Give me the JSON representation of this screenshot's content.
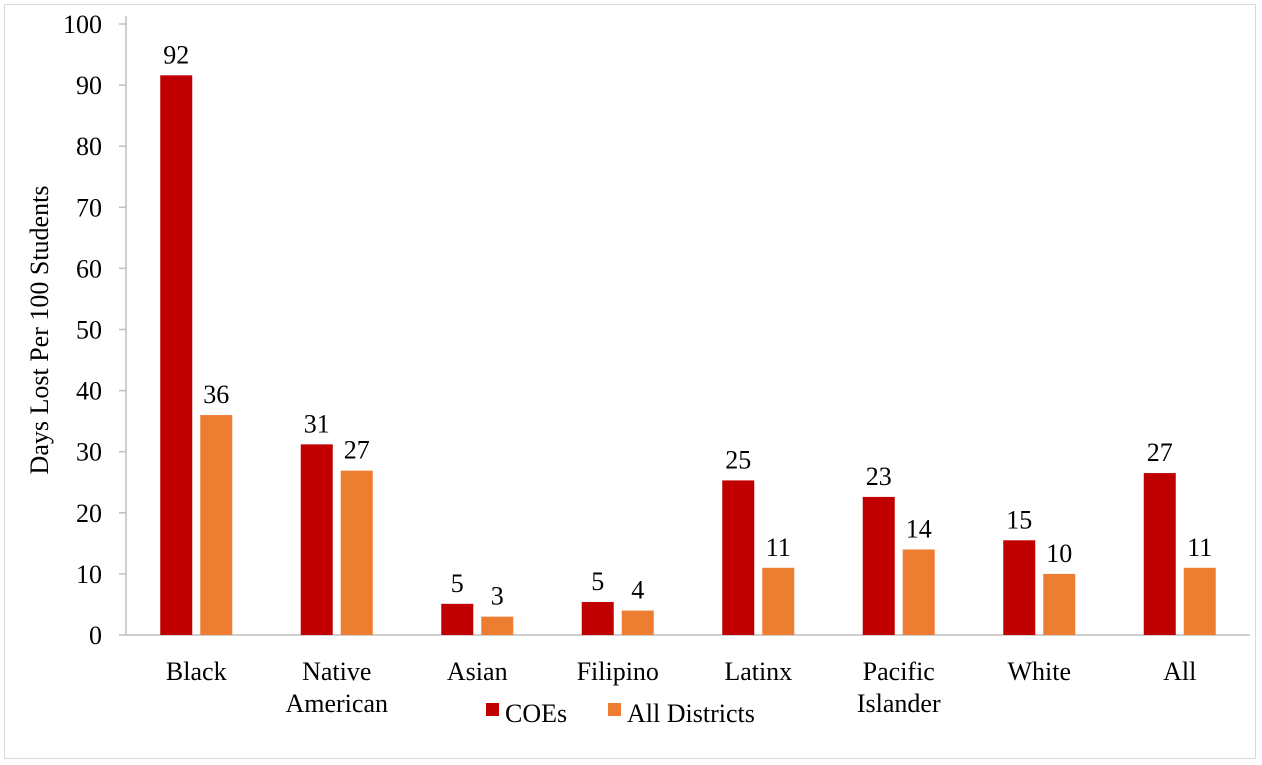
{
  "chart_data": {
    "type": "bar",
    "categories": [
      [
        "Black"
      ],
      [
        "Native",
        "American"
      ],
      [
        "Asian"
      ],
      [
        "Filipino"
      ],
      [
        "Latinx"
      ],
      [
        "Pacific",
        "Islander"
      ],
      [
        "White"
      ],
      [
        "All"
      ]
    ],
    "series": [
      {
        "name": "COEs",
        "color": "#c00000",
        "values": [
          91.6,
          31.2,
          5.1,
          5.4,
          25.3,
          22.6,
          15.5,
          26.5
        ],
        "labels": [
          "92",
          "31",
          "5",
          "5",
          "25",
          "23",
          "15",
          "27"
        ]
      },
      {
        "name": "All Districts",
        "color": "#ed7d31",
        "values": [
          36.0,
          26.9,
          3.0,
          4.0,
          11.0,
          14.0,
          10.0,
          11.0
        ],
        "labels": [
          "36",
          "27",
          "3",
          "4",
          "11",
          "14",
          "10",
          "11"
        ]
      }
    ],
    "title": "",
    "xlabel": "",
    "ylabel": "Days Lost Per 100 Students",
    "ylim": [
      0,
      100
    ],
    "yticks": [
      "0",
      "10",
      "20",
      "30",
      "40",
      "50",
      "60",
      "70",
      "80",
      "90",
      "100"
    ],
    "grid": false,
    "legend": "bottom"
  }
}
